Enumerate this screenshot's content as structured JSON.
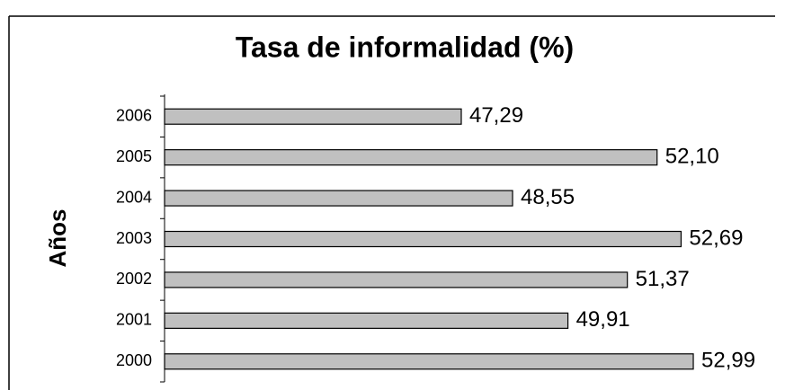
{
  "chart_data": {
    "type": "bar",
    "orientation": "horizontal",
    "title": "Tasa de informalidad (%)",
    "y_label": "Años",
    "categories": [
      "2000",
      "2001",
      "2002",
      "2003",
      "2004",
      "2005",
      "2006"
    ],
    "values": [
      52.99,
      49.91,
      51.37,
      52.69,
      48.55,
      52.1,
      47.29
    ],
    "value_labels": [
      "52,99",
      "49,91",
      "51,37",
      "52,69",
      "48,55",
      "52,10",
      "47,29"
    ],
    "color": "#c0c0c0",
    "xlim": [
      40,
      55
    ]
  }
}
